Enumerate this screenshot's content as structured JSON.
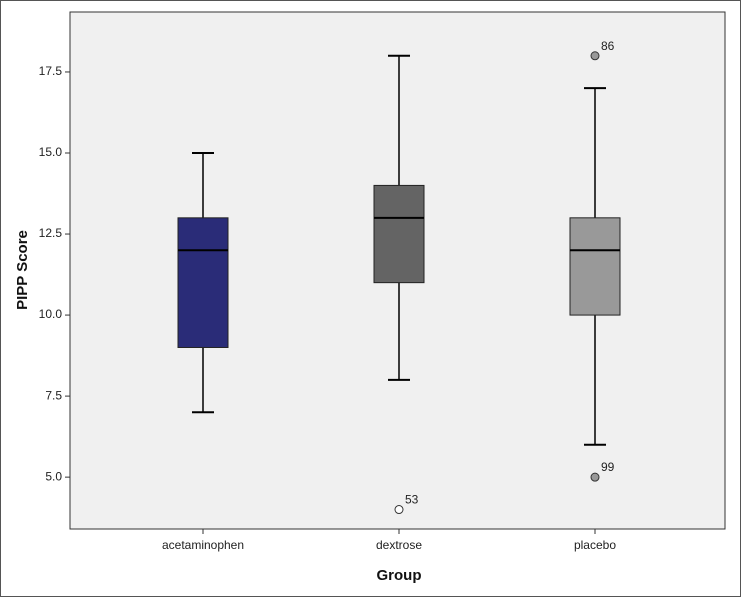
{
  "chart_data": {
    "type": "boxplot",
    "xlabel": "Group",
    "ylabel": "PIPP Score",
    "ylim": [
      3.4,
      19.35
    ],
    "yticks": [
      5.0,
      7.5,
      10.0,
      12.5,
      15.0,
      17.5
    ],
    "ytick_labels": [
      "5.0",
      "7.5",
      "10.0",
      "12.5",
      "15.0",
      "17.5"
    ],
    "grid": false,
    "plot_background": "#f0f0f0",
    "groups": [
      {
        "category": "acetaminophen",
        "whisker_low": 7,
        "q1": 9,
        "median": 12,
        "q3": 13,
        "whisker_high": 15,
        "color": "#2a2c78",
        "outliers": []
      },
      {
        "category": "dextrose",
        "whisker_low": 8,
        "q1": 11,
        "median": 13,
        "q3": 14,
        "whisker_high": 18,
        "color": "#646464",
        "outliers": [
          {
            "value": 4,
            "label": "53",
            "filled": false
          }
        ]
      },
      {
        "category": "placebo",
        "whisker_low": 6,
        "q1": 10,
        "median": 12,
        "q3": 13,
        "whisker_high": 17,
        "color": "#999999",
        "outliers": [
          {
            "value": 18,
            "label": "86",
            "filled": true
          },
          {
            "value": 5,
            "label": "99",
            "filled": true
          }
        ]
      }
    ]
  }
}
